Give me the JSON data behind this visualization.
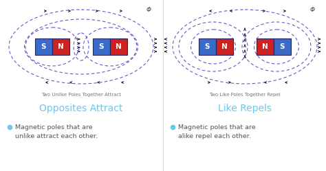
{
  "background_color": "#ffffff",
  "title1": "Opposites Attract",
  "title2": "Like Repels",
  "subtitle1": "Two Unlike Poles Together Attract",
  "subtitle2": "Two Like Poles Together Repel",
  "bullet1_line1": "Magnetic poles that are",
  "bullet1_line2": "unlike attract each other.",
  "bullet2_line1": "Magnetic poles that are",
  "bullet2_line2": "alike repel each other.",
  "title_color": "#6EC6E8",
  "bullet_color": "#6EC6E8",
  "text_color": "#555555",
  "subtitle_color": "#777777",
  "blue_color": "#3A6BC8",
  "red_color": "#CC2222",
  "magnet_edge": "#222266",
  "arrow_color": "#111133",
  "field_line_color": "#6655CC",
  "divider_color": "#dddddd",
  "phi_color": "#444444"
}
